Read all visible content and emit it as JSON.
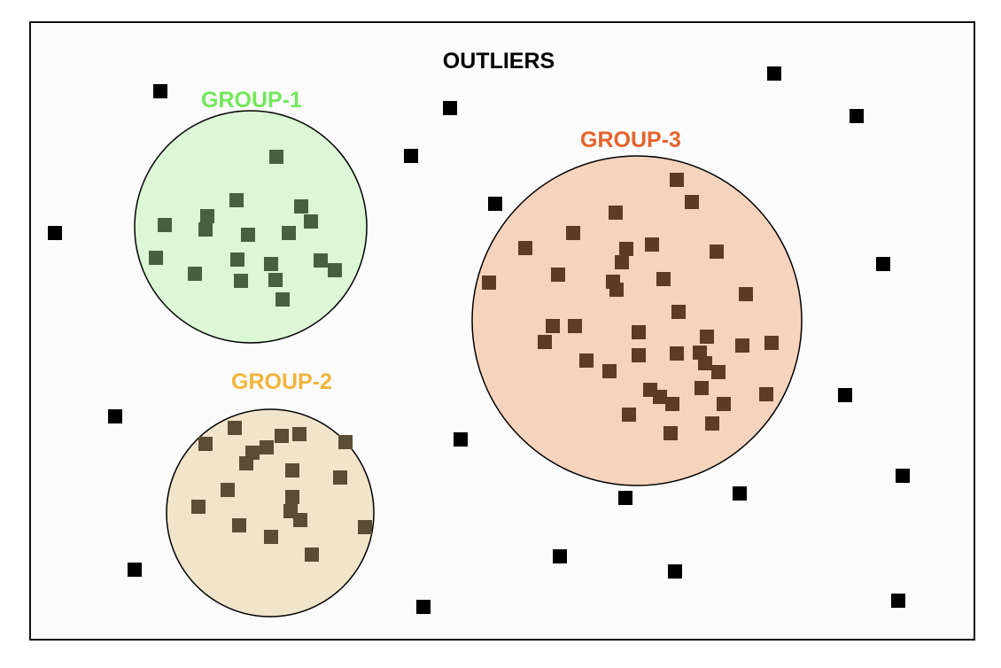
{
  "title": "OUTLIERS",
  "colors": {
    "background": "#fbfbfc",
    "border": "#111111",
    "outlier": "#000000",
    "group1_fill": "#dcf7d6",
    "group1_point": "#46613f",
    "group1_label": "#72e85a",
    "group2_fill": "#f0e4cb",
    "group2_point": "#5b4d35",
    "group2_label": "#f2b43a",
    "group3_fill": "#f5d3bd",
    "group3_point": "#5e3b22",
    "group3_label": "#e6632a"
  },
  "groups": [
    {
      "id": "group-1",
      "label": "GROUP-1",
      "point_count": 20
    },
    {
      "id": "group-2",
      "label": "GROUP-2",
      "point_count": 22
    },
    {
      "id": "group-3",
      "label": "GROUP-3",
      "point_count": 44
    }
  ],
  "outlier_count": 20
}
